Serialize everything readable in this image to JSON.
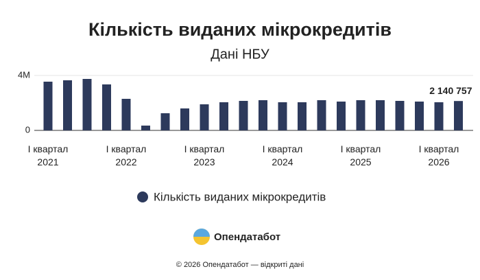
{
  "chart_data": {
    "type": "bar",
    "title": "Кількість виданих мікрокредитів",
    "subtitle": "Дані НБУ",
    "categories": [
      "I квартал 2021",
      null,
      null,
      null,
      "I квартал 2022",
      null,
      null,
      null,
      "I квартал 2023",
      null,
      null,
      null,
      "I квартал 2024",
      null,
      null,
      null,
      "I квартал 2025",
      null,
      null,
      null,
      "I квартал 2026",
      null
    ],
    "series": [
      {
        "name": "Кількість виданих мікрокредитів",
        "color": "#2d3a5c",
        "values": [
          3550000,
          3650000,
          3750000,
          3350000,
          2300000,
          350000,
          1250000,
          1600000,
          1900000,
          2050000,
          2150000,
          2200000,
          2050000,
          2050000,
          2200000,
          2100000,
          2200000,
          2200000,
          2150000,
          2100000,
          2050000,
          2140757
        ],
        "value_labels": [
          null,
          null,
          null,
          null,
          null,
          null,
          null,
          null,
          null,
          null,
          null,
          null,
          null,
          null,
          null,
          null,
          null,
          null,
          null,
          null,
          null,
          "2 140 757"
        ]
      }
    ],
    "ylim": [
      0,
      4000000
    ],
    "yticks": [
      0,
      {
        "value": 4000000,
        "label": "4M"
      }
    ],
    "grid": true
  },
  "logo": "Опендатабот",
  "footer": "© 2026 Опендатабот — відкриті дані"
}
